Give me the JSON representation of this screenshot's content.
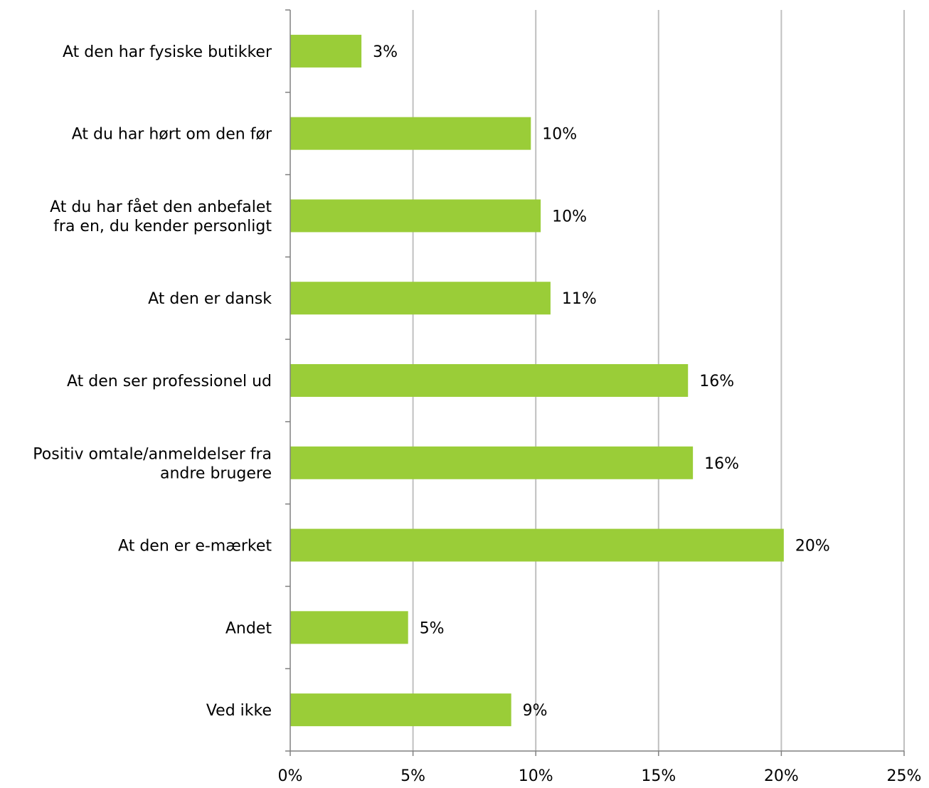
{
  "chart_data": {
    "type": "bar",
    "orientation": "horizontal",
    "categories": [
      "At den har fysiske butikker",
      "At du har hørt om den før",
      "At du har fået den anbefalet fra en, du kender personligt",
      "At den er dansk",
      "At den ser professionel ud",
      "Positiv omtale/anmeldelser fra andre brugere",
      "At den er e-mærket",
      "Andet",
      "Ved ikke"
    ],
    "category_lines": [
      [
        "At den har fysiske butikker"
      ],
      [
        "At du har hørt om den før"
      ],
      [
        "At du har fået den anbefalet",
        "fra en, du kender personligt"
      ],
      [
        "At den er dansk"
      ],
      [
        "At den ser professionel ud"
      ],
      [
        "Positiv omtale/anmeldelser fra",
        "andre brugere"
      ],
      [
        "At den er e-mærket"
      ],
      [
        "Andet"
      ],
      [
        "Ved ikke"
      ]
    ],
    "values": [
      2.9,
      9.8,
      10.2,
      10.6,
      16.2,
      16.4,
      20.1,
      4.8,
      9.0
    ],
    "value_labels": [
      "3%",
      "10%",
      "10%",
      "11%",
      "16%",
      "16%",
      "20%",
      "5%",
      "9%"
    ],
    "xlim": [
      0,
      25
    ],
    "x_ticks": [
      0,
      5,
      10,
      15,
      20,
      25
    ],
    "x_tick_labels": [
      "0%",
      "5%",
      "10%",
      "15%",
      "20%",
      "25%"
    ],
    "grid": "vertical",
    "legend": "none",
    "bar_color": "#9ACD38",
    "grid_color": "#C0C0C0",
    "axis_color": "#808080"
  }
}
